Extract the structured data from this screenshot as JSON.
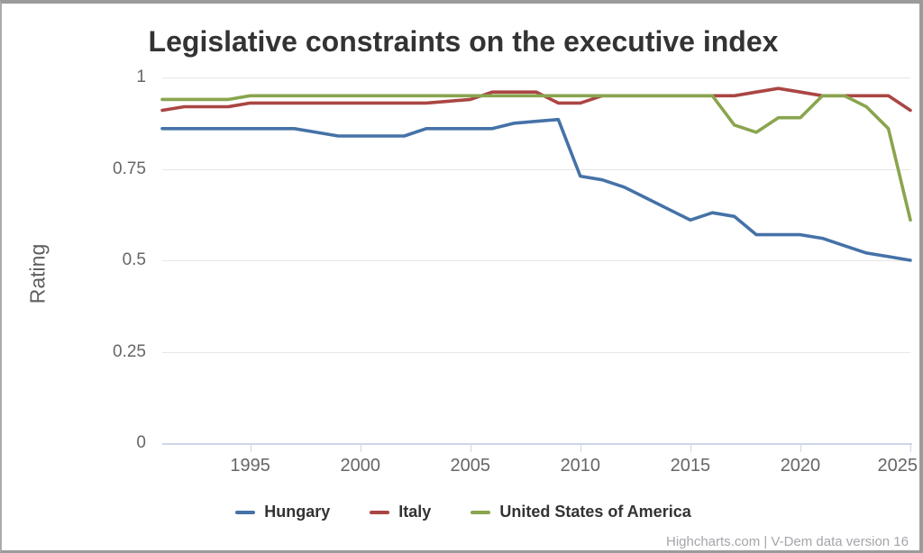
{
  "title": "Legislative constraints on the executive index",
  "y_axis_title": "Rating",
  "credits": "Highcharts.com | V-Dem data version 16",
  "accent_colors": {
    "grid": "#e6e6e6",
    "axis": "#ccd6eb",
    "text": "#666666",
    "title": "#333333",
    "credits": "#a5a5ab"
  },
  "legend": [
    {
      "label": "Hungary",
      "color": "#4572A7"
    },
    {
      "label": "Italy",
      "color": "#AA4643"
    },
    {
      "label": "United States of America",
      "color": "#89A54E"
    }
  ],
  "chart_data": {
    "type": "line",
    "title": "Legislative constraints on the executive index",
    "xlabel": "",
    "ylabel": "Rating",
    "xlim": [
      1991,
      2025
    ],
    "ylim": [
      0,
      1
    ],
    "grid": true,
    "legend_position": "bottom",
    "x": [
      1991,
      1992,
      1993,
      1994,
      1995,
      1996,
      1997,
      1998,
      1999,
      2000,
      2001,
      2002,
      2003,
      2004,
      2005,
      2006,
      2007,
      2008,
      2009,
      2010,
      2011,
      2012,
      2013,
      2014,
      2015,
      2016,
      2017,
      2018,
      2019,
      2020,
      2021,
      2022,
      2023,
      2024,
      2025
    ],
    "xticks": [
      1995,
      2000,
      2005,
      2010,
      2015,
      2020,
      2025
    ],
    "xtick_labels": [
      "1995",
      "2000",
      "2005",
      "2010",
      "2015",
      "2020",
      "2025"
    ],
    "yticks": [
      0,
      0.25,
      0.5,
      0.75,
      1
    ],
    "ytick_labels": [
      "0",
      "0.25",
      "0.5",
      "0.75",
      "1"
    ],
    "series": [
      {
        "name": "Hungary",
        "color": "#4572A7",
        "values": [
          0.86,
          0.86,
          0.86,
          0.86,
          0.86,
          0.86,
          0.86,
          0.85,
          0.84,
          0.84,
          0.84,
          0.84,
          0.86,
          0.86,
          0.86,
          0.86,
          0.875,
          0.88,
          0.885,
          0.73,
          0.72,
          0.7,
          0.67,
          0.64,
          0.61,
          0.63,
          0.62,
          0.57,
          0.57,
          0.57,
          0.56,
          0.54,
          0.52,
          0.51,
          0.5
        ]
      },
      {
        "name": "Italy",
        "color": "#AA4643",
        "values": [
          0.91,
          0.92,
          0.92,
          0.92,
          0.93,
          0.93,
          0.93,
          0.93,
          0.93,
          0.93,
          0.93,
          0.93,
          0.93,
          0.935,
          0.94,
          0.96,
          0.96,
          0.96,
          0.93,
          0.93,
          0.95,
          0.95,
          0.95,
          0.95,
          0.95,
          0.95,
          0.95,
          0.96,
          0.97,
          0.96,
          0.95,
          0.95,
          0.95,
          0.95,
          0.91
        ]
      },
      {
        "name": "United States of America",
        "color": "#89A54E",
        "values": [
          0.94,
          0.94,
          0.94,
          0.94,
          0.95,
          0.95,
          0.95,
          0.95,
          0.95,
          0.95,
          0.95,
          0.95,
          0.95,
          0.95,
          0.95,
          0.95,
          0.95,
          0.95,
          0.95,
          0.95,
          0.95,
          0.95,
          0.95,
          0.95,
          0.95,
          0.95,
          0.87,
          0.85,
          0.89,
          0.89,
          0.95,
          0.95,
          0.92,
          0.86,
          0.61
        ]
      }
    ]
  }
}
